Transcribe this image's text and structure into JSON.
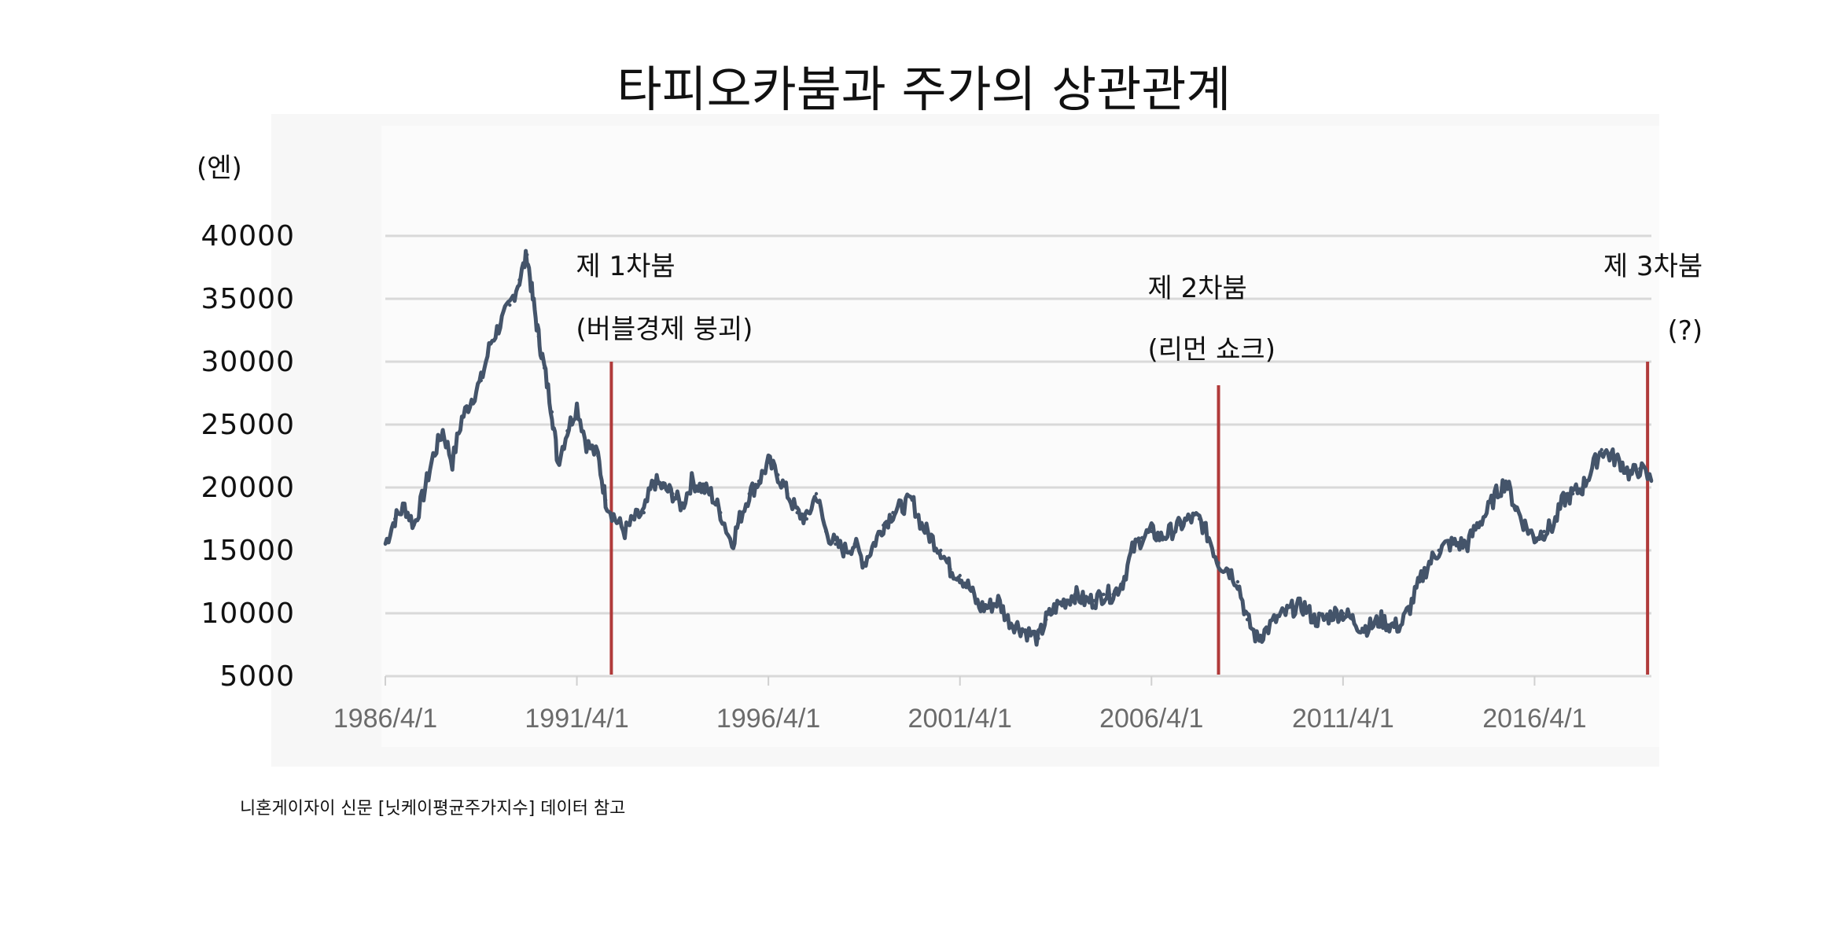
{
  "chart_data": {
    "type": "line",
    "title": "타피오카붐과 주가의 상관관계",
    "ylabel": "(엔)",
    "ylim": [
      5000,
      40000
    ],
    "yticks": [
      "40000",
      "35000",
      "30000",
      "25000",
      "20000",
      "15000",
      "10000",
      "5000"
    ],
    "xticks": [
      "1986/4/1",
      "1991/4/1",
      "1996/4/1",
      "2001/4/1",
      "2006/4/1",
      "2011/4/1",
      "2016/4/1"
    ],
    "xlim": [
      1986.25,
      2019.3
    ],
    "grid": true,
    "line_color": "#44546a",
    "marker_color": "#b03a3a",
    "series": [
      {
        "x": [
          1986.25,
          1986.5,
          1986.75,
          1987.0,
          1987.25,
          1987.5,
          1987.75,
          1988.0,
          1988.25,
          1988.5,
          1988.75,
          1989.0,
          1989.25,
          1989.5,
          1989.75,
          1989.95,
          1990.1,
          1990.25,
          1990.4,
          1990.6,
          1990.75,
          1991.0,
          1991.25,
          1991.5,
          1991.8,
          1992.0,
          1992.25,
          1992.5,
          1992.75,
          1993.0,
          1993.25,
          1993.5,
          1993.75,
          1994.0,
          1994.25,
          1994.5,
          1994.75,
          1995.0,
          1995.3,
          1995.5,
          1995.75,
          1996.0,
          1996.25,
          1996.5,
          1996.75,
          1997.0,
          1997.25,
          1997.5,
          1997.75,
          1998.0,
          1998.25,
          1998.5,
          1998.75,
          1999.0,
          1999.25,
          1999.5,
          1999.75,
          2000.0,
          2000.25,
          2000.5,
          2000.75,
          2001.0,
          2001.25,
          2001.5,
          2001.75,
          2002.0,
          2002.25,
          2002.5,
          2002.75,
          2003.0,
          2003.3,
          2003.5,
          2003.75,
          2004.0,
          2004.25,
          2004.5,
          2004.75,
          2005.0,
          2005.25,
          2005.5,
          2005.75,
          2006.0,
          2006.25,
          2006.5,
          2006.75,
          2007.0,
          2007.25,
          2007.5,
          2007.75,
          2008.0,
          2008.25,
          2008.5,
          2008.75,
          2009.0,
          2009.2,
          2009.5,
          2009.75,
          2010.0,
          2010.25,
          2010.5,
          2010.75,
          2011.0,
          2011.25,
          2011.5,
          2011.75,
          2012.0,
          2012.25,
          2012.5,
          2012.75,
          2013.0,
          2013.25,
          2013.5,
          2013.75,
          2014.0,
          2014.25,
          2014.5,
          2014.75,
          2015.0,
          2015.25,
          2015.5,
          2015.75,
          2016.0,
          2016.25,
          2016.5,
          2016.75,
          2017.0,
          2017.25,
          2017.5,
          2017.75,
          2018.0,
          2018.25,
          2018.5,
          2018.75,
          2019.0,
          2019.3
        ],
        "y": [
          15500,
          17500,
          18500,
          17000,
          19500,
          22500,
          24500,
          22000,
          25500,
          27000,
          28500,
          31500,
          33000,
          34500,
          36500,
          38500,
          35000,
          32000,
          29500,
          26000,
          22000,
          24500,
          26500,
          23500,
          22500,
          19000,
          17500,
          16500,
          17500,
          18000,
          20500,
          20000,
          19500,
          18500,
          20500,
          20000,
          19500,
          18000,
          15500,
          17500,
          19500,
          20500,
          22000,
          21000,
          19500,
          18000,
          17500,
          19500,
          16500,
          15500,
          15000,
          15500,
          14000,
          15500,
          17000,
          18000,
          18500,
          19000,
          17000,
          16000,
          15000,
          13500,
          13000,
          12000,
          10500,
          10500,
          11000,
          9500,
          9000,
          8500,
          8000,
          9500,
          10500,
          11000,
          11500,
          11000,
          11000,
          11500,
          11500,
          12500,
          15000,
          16000,
          16500,
          16000,
          16500,
          17000,
          17500,
          17500,
          16000,
          14000,
          13500,
          12500,
          9500,
          8000,
          8500,
          9500,
          10000,
          10500,
          10500,
          9500,
          9500,
          10000,
          10000,
          9500,
          8800,
          9000,
          9500,
          9000,
          9000,
          10500,
          12500,
          14000,
          15000,
          15500,
          15500,
          15500,
          17000,
          18000,
          19500,
          20500,
          18500,
          17000,
          16000,
          16500,
          17000,
          19000,
          19500,
          20000,
          21500,
          23000,
          22500,
          22000,
          21000,
          21500,
          20500
        ]
      }
    ],
    "events": [
      {
        "x": 1992.15,
        "label_line1": "제 1차붐",
        "label_line2": "(버블경제 붕괴)"
      },
      {
        "x": 2008.0,
        "label_line1": "제 2차붐",
        "label_line2": "(리먼 쇼크)"
      },
      {
        "x": 2019.2,
        "label_line1": "제 3차붐",
        "label_line2": "(?)"
      }
    ]
  },
  "footnote": "니혼게이자이 신문 [닛케이평균주가지수] 데이터 참고"
}
